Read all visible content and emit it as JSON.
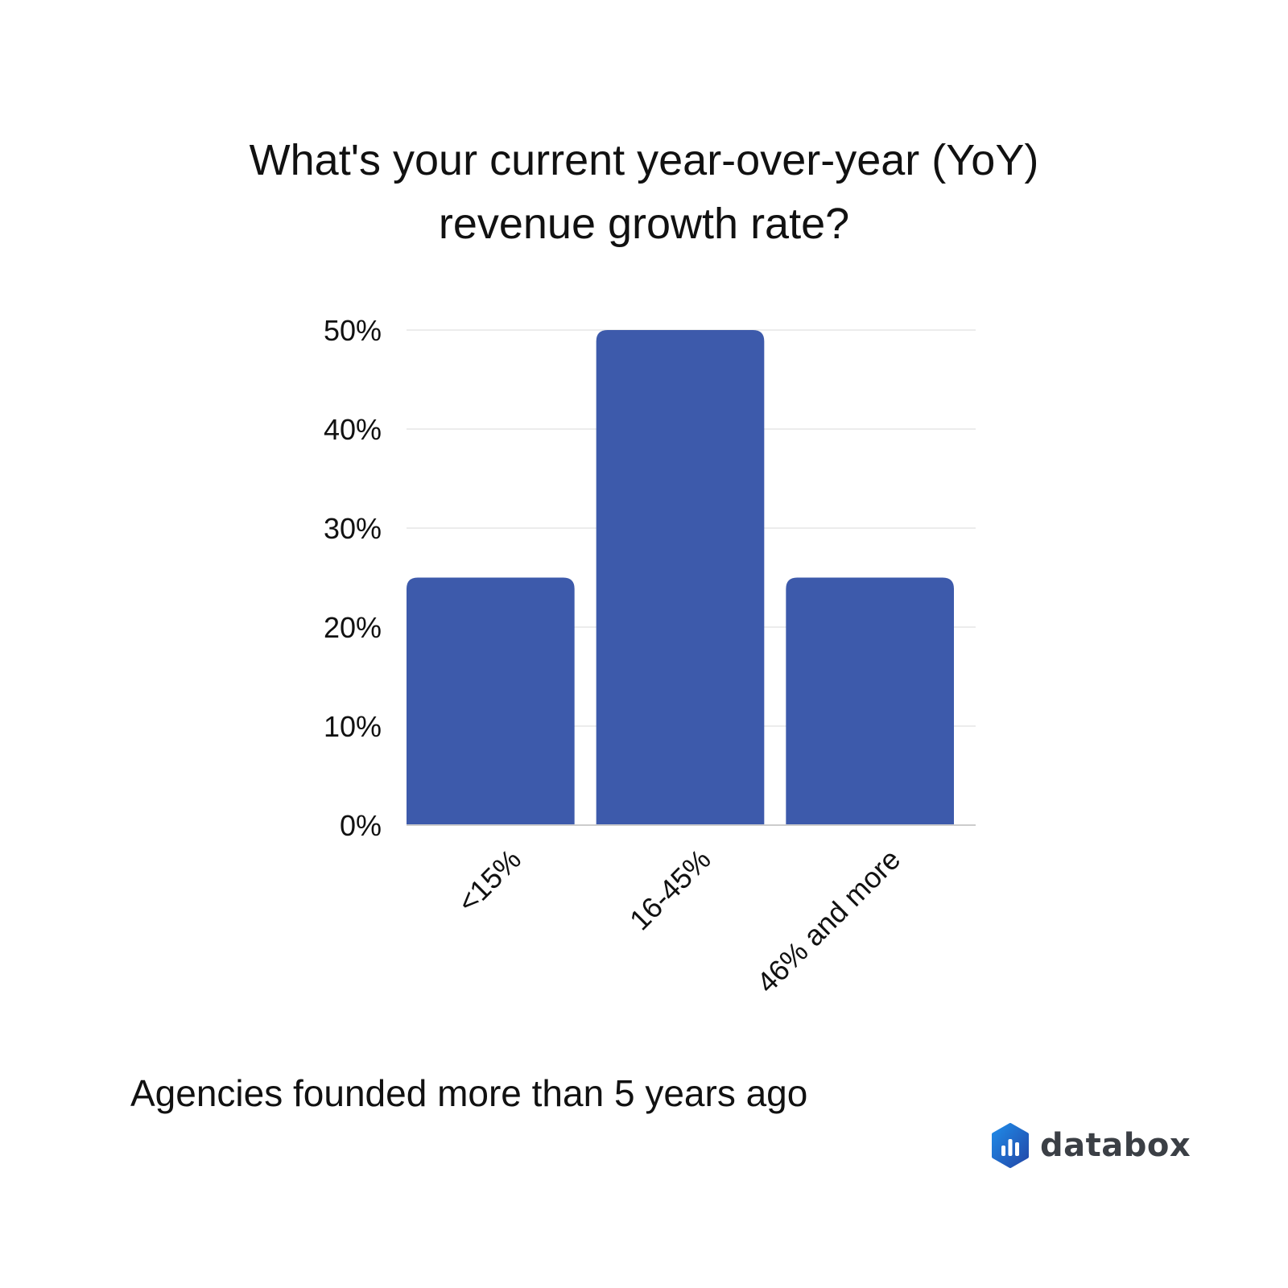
{
  "title": {
    "line1": "What's your current year-over-year (YoY)",
    "line2": "revenue growth rate?"
  },
  "caption": "Agencies founded more than 5 years ago",
  "brand": {
    "name": "databox",
    "icon": "databox-logo-icon"
  },
  "colors": {
    "bar": "#3d5aab",
    "grid": "#e6e6e6",
    "axis": "#cccccc",
    "text": "#111111"
  },
  "chart_data": {
    "type": "bar",
    "categories": [
      "<15%",
      "16-45%",
      "46% and more"
    ],
    "values": [
      25,
      50,
      25
    ],
    "yticks": [
      "0%",
      "10%",
      "20%",
      "30%",
      "40%",
      "50%"
    ],
    "ylim": [
      0,
      50
    ],
    "grid": true,
    "legend": "none"
  }
}
